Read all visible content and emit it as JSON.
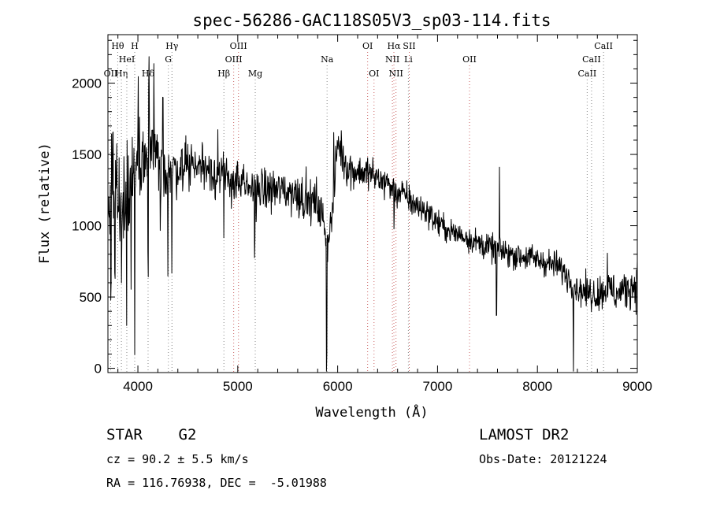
{
  "chart_data": {
    "type": "line",
    "title": "spec-56286-GAC118S05V3_sp03-114.fits",
    "xlabel": "Wavelength (Å)",
    "ylabel": "Flux (relative)",
    "xlim": [
      3700,
      9000
    ],
    "ylim": [
      -30,
      2340
    ],
    "xticks": [
      4000,
      5000,
      6000,
      7000,
      8000,
      9000
    ],
    "yticks": [
      0,
      500,
      1000,
      1500,
      2000
    ],
    "grid": false,
    "series": [
      {
        "color": "#000000",
        "anchors": [
          [
            3700,
            1050
          ],
          [
            3740,
            1300
          ],
          [
            3780,
            1250
          ],
          [
            3820,
            1150
          ],
          [
            3860,
            1200
          ],
          [
            3900,
            1300
          ],
          [
            3950,
            1350
          ],
          [
            4000,
            1420
          ],
          [
            4050,
            1500
          ],
          [
            4100,
            1550
          ],
          [
            4150,
            1500
          ],
          [
            4200,
            1450
          ],
          [
            4250,
            1400
          ],
          [
            4300,
            1380
          ],
          [
            4400,
            1400
          ],
          [
            4500,
            1450
          ],
          [
            4600,
            1420
          ],
          [
            4700,
            1420
          ],
          [
            4800,
            1350
          ],
          [
            4900,
            1330
          ],
          [
            5000,
            1300
          ],
          [
            5100,
            1250
          ],
          [
            5200,
            1260
          ],
          [
            5300,
            1250
          ],
          [
            5400,
            1250
          ],
          [
            5500,
            1240
          ],
          [
            5600,
            1230
          ],
          [
            5700,
            1180
          ],
          [
            5800,
            1150
          ],
          [
            5850,
            1050
          ],
          [
            5900,
            900
          ],
          [
            5950,
            1100
          ],
          [
            6000,
            1600
          ],
          [
            6050,
            1500
          ],
          [
            6100,
            1400
          ],
          [
            6200,
            1380
          ],
          [
            6300,
            1370
          ],
          [
            6400,
            1330
          ],
          [
            6500,
            1300
          ],
          [
            6550,
            1250
          ],
          [
            6600,
            1230
          ],
          [
            6700,
            1200
          ],
          [
            6800,
            1130
          ],
          [
            6900,
            1100
          ],
          [
            7000,
            1020
          ],
          [
            7100,
            970
          ],
          [
            7200,
            940
          ],
          [
            7300,
            920
          ],
          [
            7400,
            880
          ],
          [
            7500,
            850
          ],
          [
            7600,
            830
          ],
          [
            7700,
            810
          ],
          [
            7800,
            790
          ],
          [
            7900,
            780
          ],
          [
            8000,
            760
          ],
          [
            8100,
            740
          ],
          [
            8200,
            720
          ],
          [
            8300,
            650
          ],
          [
            8400,
            560
          ],
          [
            8500,
            530
          ],
          [
            8600,
            520
          ],
          [
            8700,
            560
          ],
          [
            8800,
            520
          ],
          [
            8900,
            560
          ],
          [
            9000,
            600
          ]
        ],
        "noise": [
          [
            3700,
            230
          ],
          [
            3900,
            230
          ],
          [
            4000,
            180
          ],
          [
            4300,
            130
          ],
          [
            5000,
            110
          ],
          [
            5800,
            110
          ],
          [
            6000,
            100
          ],
          [
            6600,
            80
          ],
          [
            7000,
            65
          ],
          [
            8300,
            70
          ],
          [
            9000,
            110
          ]
        ],
        "dips": [
          [
            3730,
            650
          ],
          [
            3770,
            750
          ],
          [
            3835,
            800
          ],
          [
            3889,
            1000
          ],
          [
            3933,
            800
          ],
          [
            3968,
            1150
          ],
          [
            4102,
            800
          ],
          [
            4226,
            480
          ],
          [
            4300,
            700
          ],
          [
            4340,
            760
          ],
          [
            4861,
            420
          ],
          [
            5170,
            380
          ],
          [
            5890,
            900
          ],
          [
            6563,
            280
          ],
          [
            7590,
            480
          ],
          [
            8360,
            760
          ]
        ],
        "peaks": [
          [
            3750,
            400
          ],
          [
            4005,
            650
          ],
          [
            4110,
            600
          ],
          [
            4160,
            600
          ],
          [
            4250,
            450
          ],
          [
            4800,
            300
          ],
          [
            5960,
            420
          ],
          [
            7620,
            550
          ],
          [
            8700,
            300
          ]
        ]
      }
    ],
    "lines": [
      {
        "label": "OII",
        "x": 3727,
        "row": 3,
        "color": "#888888"
      },
      {
        "label": "Hθ",
        "x": 3798,
        "row": 1,
        "color": "#888888"
      },
      {
        "label": "Hη",
        "x": 3835,
        "row": 3,
        "color": "#888888"
      },
      {
        "label": "HeI",
        "x": 3889,
        "row": 2,
        "color": "#888888"
      },
      {
        "label": "H",
        "x": 3968,
        "row": 1,
        "color": "#888888"
      },
      {
        "label": "Hδ",
        "x": 4102,
        "row": 3,
        "color": "#888888"
      },
      {
        "label": "G",
        "x": 4305,
        "row": 2,
        "color": "#888888"
      },
      {
        "label": "Hγ",
        "x": 4341,
        "row": 1,
        "color": "#888888"
      },
      {
        "label": "Hβ",
        "x": 4861,
        "row": 3,
        "color": "#888888"
      },
      {
        "label": "OIII",
        "x": 4959,
        "row": 2,
        "color": "#cc6666"
      },
      {
        "label": "OIII",
        "x": 5007,
        "row": 1,
        "color": "#cc6666"
      },
      {
        "label": "Mg",
        "x": 5175,
        "row": 3,
        "color": "#888888"
      },
      {
        "label": "Na",
        "x": 5894,
        "row": 2,
        "color": "#888888"
      },
      {
        "label": "OI",
        "x": 6300,
        "row": 1,
        "color": "#cc6666"
      },
      {
        "label": "OI",
        "x": 6364,
        "row": 3,
        "color": "#cc6666"
      },
      {
        "label": "NII",
        "x": 6548,
        "row": 2,
        "color": "#cc6666"
      },
      {
        "label": "Hα",
        "x": 6563,
        "row": 1,
        "color": "#cc6666"
      },
      {
        "label": "NII",
        "x": 6584,
        "row": 3,
        "color": "#cc6666"
      },
      {
        "label": "Li",
        "x": 6708,
        "row": 2,
        "color": "#888888"
      },
      {
        "label": "SII",
        "x": 6717,
        "row": 1,
        "color": "#cc6666"
      },
      {
        "label": "OII",
        "x": 7320,
        "row": 2,
        "color": "#cc6666"
      },
      {
        "label": "CaII",
        "x": 8498,
        "row": 3,
        "color": "#888888"
      },
      {
        "label": "CaII",
        "x": 8542,
        "row": 2,
        "color": "#888888"
      },
      {
        "label": "CaII",
        "x": 8662,
        "row": 1,
        "color": "#888888"
      }
    ]
  },
  "footer": {
    "star_line": "STAR    G2",
    "survey": "LAMOST DR2",
    "cz_line": "cz = 90.2 ± 5.5 km/s",
    "obs_line": "Obs-Date: 20121224",
    "radec_line": "RA = 116.76938, DEC =  -5.01988"
  }
}
